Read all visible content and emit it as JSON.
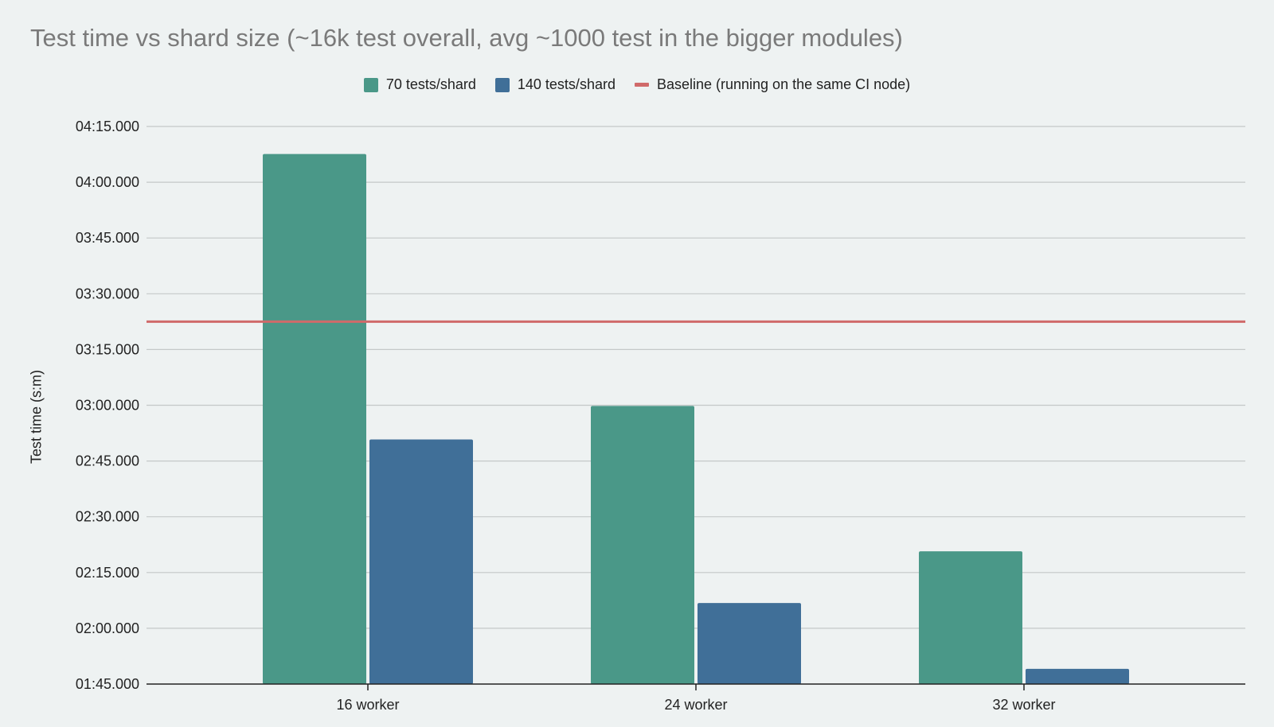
{
  "chart_data": {
    "type": "bar",
    "title": "Test time vs shard size (~16k test overall, avg ~1000 test in the bigger modules)",
    "xlabel": "",
    "ylabel": "Test time (s:m)",
    "categories": [
      "16 worker",
      "24 worker",
      "32 worker"
    ],
    "series": [
      {
        "name": "70 tests/shard",
        "color": "#4a9888",
        "values": [
          247.6,
          179.8,
          140.7
        ]
      },
      {
        "name": "140 tests/shard",
        "color": "#406f98",
        "values": [
          170.8,
          126.8,
          109.1
        ]
      }
    ],
    "baseline": {
      "name": "Baseline (running on the same CI node)",
      "color": "#d06a6a",
      "value": 202.5
    },
    "ylim": [
      105,
      255
    ],
    "yticks": [
      105,
      120,
      135,
      150,
      165,
      180,
      195,
      210,
      225,
      240,
      255
    ],
    "ytick_labels": [
      "01:45.000",
      "02:00.000",
      "02:15.000",
      "02:30.000",
      "02:45.000",
      "03:00.000",
      "03:15.000",
      "03:30.000",
      "03:45.000",
      "04:00.000",
      "04:15.000"
    ],
    "grid": true,
    "legend_position": "top-center"
  }
}
